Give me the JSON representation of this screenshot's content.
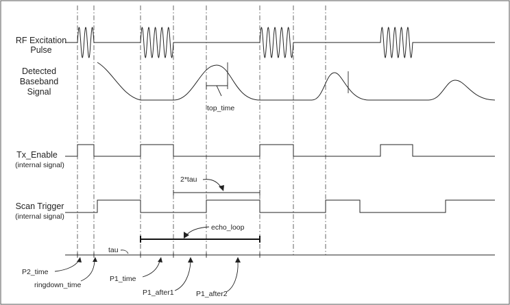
{
  "rows": {
    "rf": {
      "label_line1": "RF Excitation",
      "label_line2": "Pulse"
    },
    "baseband": {
      "label_line1": "Detected",
      "label_line2": "Baseband",
      "label_line3": "Signal"
    },
    "tx": {
      "label": "Tx_Enable",
      "sublabel": "(internal signal)"
    },
    "scan": {
      "label": "Scan Trigger",
      "sublabel": "(internal signal)"
    }
  },
  "annotations": {
    "top_time": "top_time",
    "two_tau": "2*tau",
    "echo_loop": "echo_loop",
    "tau": "tau",
    "p2_time": "P2_time",
    "ringdown_time": "ringdown_time",
    "p1_time": "P1_time",
    "p1_after1": "P1_after1",
    "p1_after2": "P1_after2"
  }
}
